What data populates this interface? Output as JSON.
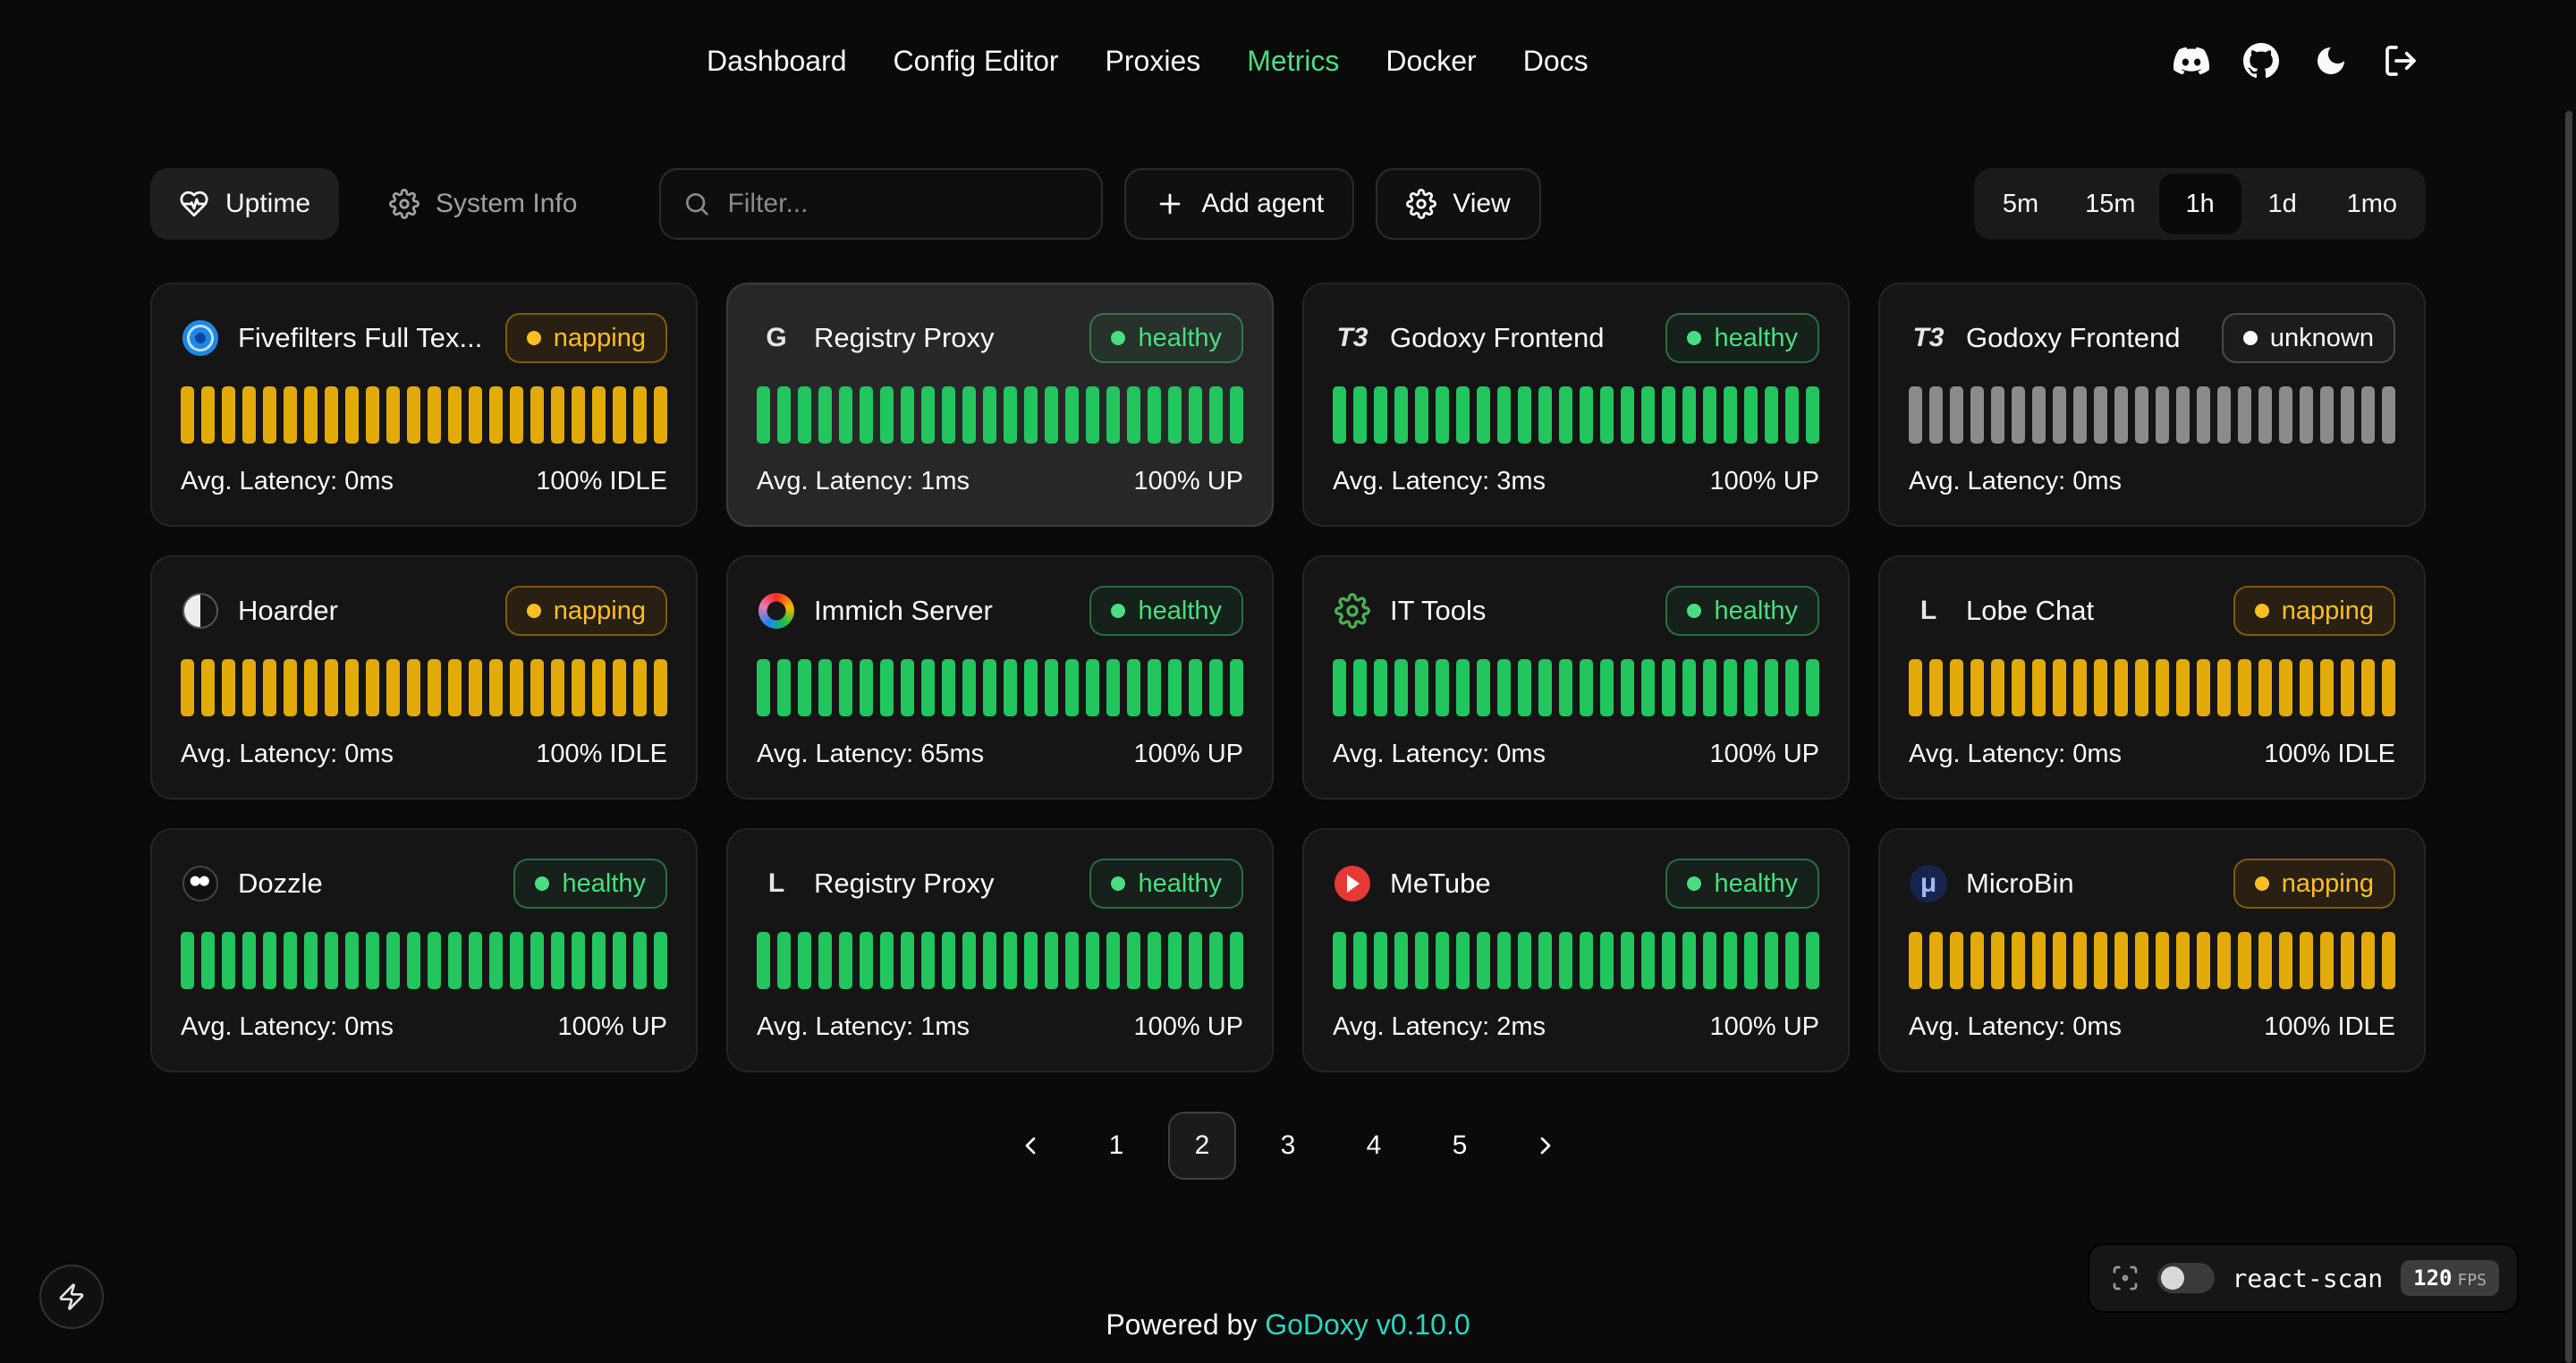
{
  "colors": {
    "accent-green": "#4ade80",
    "teal": "#2dd4bf",
    "bar-green": "#22c55e",
    "bar-yellow": "#e2ab09",
    "bar-gray": "#8b8b8b",
    "healthy": "#4ade80",
    "napping": "#fbbf24",
    "unknown": "#fafafa"
  },
  "nav": {
    "items": [
      {
        "label": "Dashboard",
        "active": false
      },
      {
        "label": "Config Editor",
        "active": false
      },
      {
        "label": "Proxies",
        "active": false
      },
      {
        "label": "Metrics",
        "active": true
      },
      {
        "label": "Docker",
        "active": false
      },
      {
        "label": "Docs",
        "active": false
      }
    ],
    "icons": [
      "discord",
      "github",
      "dark-mode-toggle",
      "logout"
    ]
  },
  "toolbar": {
    "uptime_label": "Uptime",
    "system_info_label": "System Info",
    "filter_placeholder": "Filter...",
    "add_agent_label": "Add agent",
    "view_label": "View",
    "time_ranges": [
      {
        "label": "5m",
        "active": false
      },
      {
        "label": "15m",
        "active": false
      },
      {
        "label": "1h",
        "active": true
      },
      {
        "label": "1d",
        "active": false
      },
      {
        "label": "1mo",
        "active": false
      }
    ]
  },
  "bars_per_card": 24,
  "cards": [
    {
      "name": "Fivefilters Full Tex...",
      "status": "napping",
      "latency": "Avg. Latency: 0ms",
      "uptime": "100% IDLE",
      "bar_color": "yellow",
      "highlighted": false,
      "icon": {
        "kind": "rings",
        "color": "#1e88e5"
      }
    },
    {
      "name": "Registry Proxy",
      "status": "healthy",
      "latency": "Avg. Latency: 1ms",
      "uptime": "100% UP",
      "bar_color": "green",
      "highlighted": true,
      "icon": {
        "kind": "letter",
        "text": "G",
        "color": "#e5e5e5"
      }
    },
    {
      "name": "Godoxy Frontend",
      "status": "healthy",
      "latency": "Avg. Latency: 3ms",
      "uptime": "100% UP",
      "bar_color": "green",
      "highlighted": false,
      "icon": {
        "kind": "letter",
        "text": "T3",
        "color": "#e5e5e5",
        "italic": true
      }
    },
    {
      "name": "Godoxy Frontend",
      "status": "unknown",
      "latency": "Avg. Latency: 0ms",
      "uptime": "",
      "bar_color": "gray",
      "highlighted": false,
      "icon": {
        "kind": "letter",
        "text": "T3",
        "color": "#e5e5e5",
        "italic": true
      }
    },
    {
      "name": "Hoarder",
      "status": "napping",
      "latency": "Avg. Latency: 0ms",
      "uptime": "100% IDLE",
      "bar_color": "yellow",
      "highlighted": false,
      "icon": {
        "kind": "half"
      }
    },
    {
      "name": "Immich Server",
      "status": "healthy",
      "latency": "Avg. Latency: 65ms",
      "uptime": "100% UP",
      "bar_color": "green",
      "highlighted": false,
      "icon": {
        "kind": "flower"
      }
    },
    {
      "name": "IT Tools",
      "status": "healthy",
      "latency": "Avg. Latency: 0ms",
      "uptime": "100% UP",
      "bar_color": "green",
      "highlighted": false,
      "icon": {
        "kind": "gear",
        "color": "#4caf50"
      }
    },
    {
      "name": "Lobe Chat",
      "status": "napping",
      "latency": "Avg. Latency: 0ms",
      "uptime": "100% IDLE",
      "bar_color": "yellow",
      "highlighted": false,
      "icon": {
        "kind": "letter",
        "text": "L",
        "color": "#e5e5e5"
      }
    },
    {
      "name": "Dozzle",
      "status": "healthy",
      "latency": "Avg. Latency: 0ms",
      "uptime": "100% UP",
      "bar_color": "green",
      "highlighted": false,
      "icon": {
        "kind": "face"
      }
    },
    {
      "name": "Registry Proxy",
      "status": "healthy",
      "latency": "Avg. Latency: 1ms",
      "uptime": "100% UP",
      "bar_color": "green",
      "highlighted": false,
      "icon": {
        "kind": "letter",
        "text": "L",
        "color": "#e5e5e5"
      }
    },
    {
      "name": "MeTube",
      "status": "healthy",
      "latency": "Avg. Latency: 2ms",
      "uptime": "100% UP",
      "bar_color": "green",
      "highlighted": false,
      "icon": {
        "kind": "play",
        "color": "#e53935"
      }
    },
    {
      "name": "MicroBin",
      "status": "napping",
      "latency": "Avg. Latency: 0ms",
      "uptime": "100% IDLE",
      "bar_color": "yellow",
      "highlighted": false,
      "icon": {
        "kind": "letter",
        "text": "μ",
        "color": "#9db8f7",
        "bg": "#16244d"
      }
    }
  ],
  "pagination": {
    "pages": [
      "1",
      "2",
      "3",
      "4",
      "5"
    ],
    "active": "2"
  },
  "footer": {
    "powered_by": "Powered by",
    "brand": "GoDoxy",
    "version": "v0.10.0"
  },
  "react_scan": {
    "label": "react-scan",
    "fps": "120",
    "fps_unit": "FPS"
  }
}
